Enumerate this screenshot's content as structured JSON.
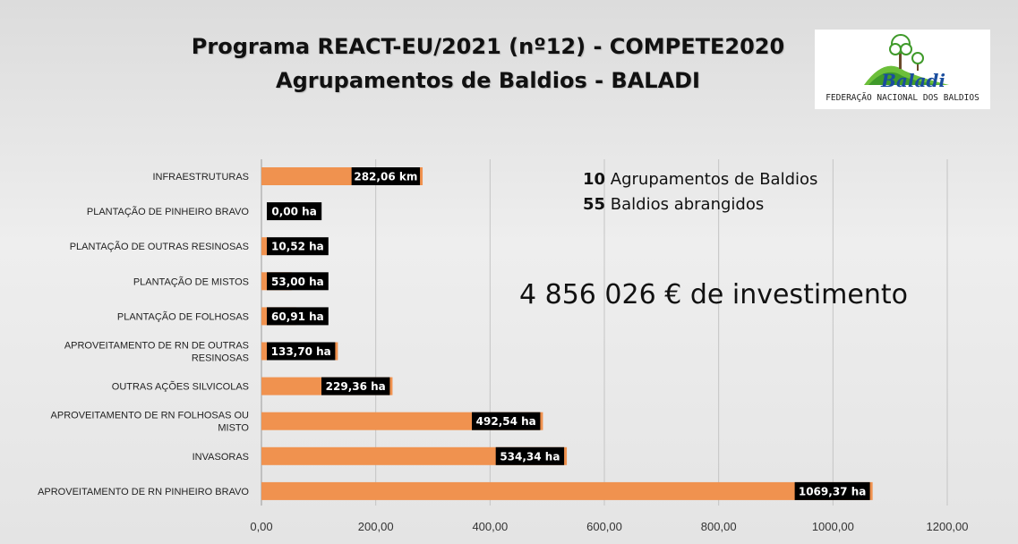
{
  "title_line1": "Programa REACT-EU/2021 (nº12)  - COMPETE2020",
  "title_line2": "Agrupamentos de Baldios - BALADI",
  "logo": {
    "word": "Baladi",
    "caption": "FEDERAÇÃO NACIONAL DOS BALDIOS",
    "icon": "tree-hill-logo"
  },
  "annotations": {
    "groups_count": "10",
    "groups_text": " Agrupamentos de Baldios",
    "baldios_count": "55",
    "baldios_text": " Baldios abrangidos",
    "investment": "4 856 026 € de investimento"
  },
  "colors": {
    "bar": "#f0924f",
    "label_bg": "#000000",
    "label_text": "#ffffff",
    "grid": "#c4c4c4"
  },
  "chart_data": {
    "type": "bar",
    "orientation": "horizontal",
    "categories": [
      [
        "INFRAESTRUTURAS"
      ],
      [
        "PLANTAÇÃO DE PINHEIRO BRAVO"
      ],
      [
        "PLANTAÇÃO DE OUTRAS RESINOSAS"
      ],
      [
        "PLANTAÇÃO DE MISTOS"
      ],
      [
        "PLANTAÇÃO DE FOLHOSAS"
      ],
      [
        "APROVEITAMENTO DE RN DE OUTRAS",
        "RESINOSAS"
      ],
      [
        "OUTRAS AÇÕES SILVICOLAS"
      ],
      [
        "APROVEITAMENTO DE RN FOLHOSAS OU",
        "MISTO"
      ],
      [
        "INVASORAS"
      ],
      [
        "APROVEITAMENTO DE RN PINHEIRO BRAVO"
      ]
    ],
    "values": [
      282.06,
      0.0,
      10.52,
      53.0,
      60.91,
      133.7,
      229.36,
      492.54,
      534.34,
      1069.37
    ],
    "data_labels": [
      "282,06 km",
      "0,00 ha",
      "10,52 ha",
      "53,00 ha",
      "60,91 ha",
      "133,70 ha",
      "229,36 ha",
      "492,54 ha",
      "534,34 ha",
      "1069,37 ha"
    ],
    "xlim": [
      0,
      1200
    ],
    "xticks": [
      0,
      200,
      400,
      600,
      800,
      1000,
      1200
    ],
    "xtick_labels": [
      "0,00",
      "200,00",
      "400,00",
      "600,00",
      "800,00",
      "1000,00",
      "1200,00"
    ],
    "grid": true,
    "legend": "none"
  }
}
